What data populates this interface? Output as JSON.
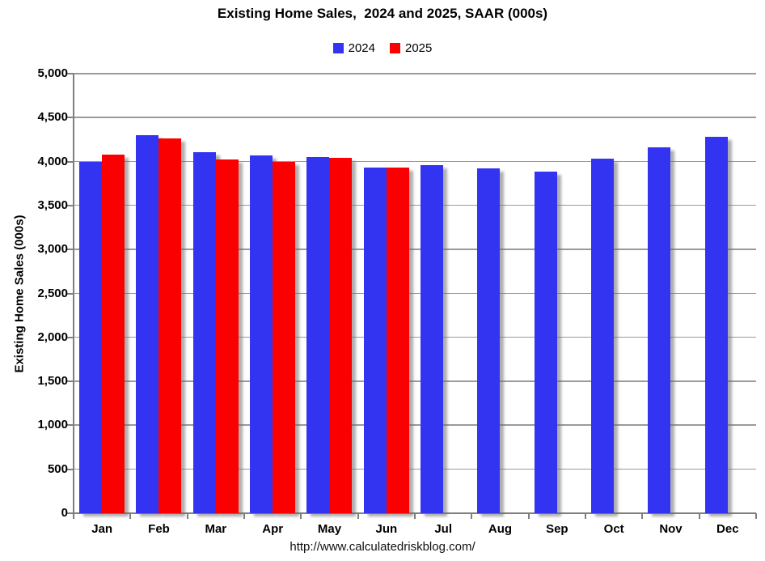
{
  "page": {
    "footer_url": "http://www.calculatedriskblog.com/"
  },
  "chart_data": {
    "type": "bar",
    "title": "Existing Home Sales,  2024 and 2025, SAAR (000s)",
    "xlabel": "",
    "ylabel": "Existing Home Sales (000s)",
    "categories": [
      "Jan",
      "Feb",
      "Mar",
      "Apr",
      "May",
      "Jun",
      "Jul",
      "Aug",
      "Sep",
      "Oct",
      "Nov",
      "Dec"
    ],
    "series": [
      {
        "name": "2024",
        "color": "#3333f2",
        "values": [
          4000,
          4300,
          4110,
          4070,
          4050,
          3930,
          3960,
          3920,
          3890,
          4030,
          4160,
          4280
        ]
      },
      {
        "name": "2025",
        "color": "#fa0000",
        "values": [
          4080,
          4260,
          4020,
          4000,
          4040,
          3930,
          null,
          null,
          null,
          null,
          null,
          null
        ]
      }
    ],
    "ylim": [
      0,
      5000
    ],
    "ytick_interval": 500,
    "ytick_labels": [
      "0",
      "500",
      "1,000",
      "1,500",
      "2,000",
      "2,500",
      "3,000",
      "3,500",
      "4,000",
      "4,500",
      "5,000"
    ],
    "grid": "horizontal",
    "legend_position": "top"
  }
}
